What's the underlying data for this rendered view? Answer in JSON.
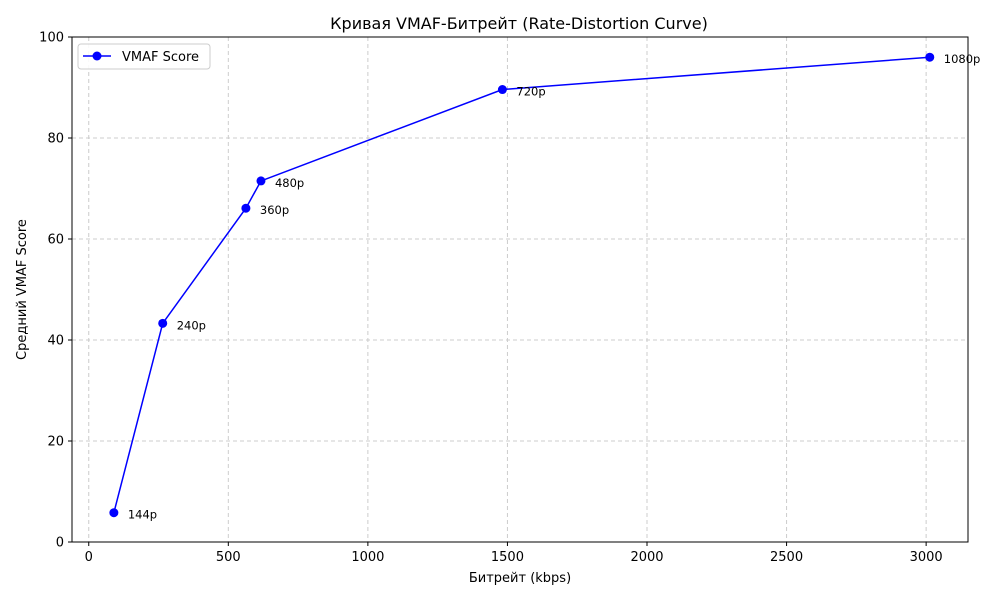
{
  "chart_data": {
    "type": "line",
    "title": "Кривая VMAF-Битрейт (Rate-Distortion Curve)",
    "xlabel": "Битрейт (kbps)",
    "ylabel": "Средний VMAF Score",
    "xlim": [
      -60,
      3150
    ],
    "ylim": [
      0,
      100
    ],
    "xticks": [
      0,
      500,
      1000,
      1500,
      2000,
      2500,
      3000
    ],
    "yticks": [
      0,
      20,
      40,
      60,
      80,
      100
    ],
    "grid": true,
    "legend_position": "top-left",
    "series": [
      {
        "name": "VMAF Score",
        "color": "#0000ff",
        "marker": "circle",
        "x": [
          90,
          265,
          563,
          617,
          1482,
          3013
        ],
        "y": [
          5.8,
          43.3,
          66.1,
          71.5,
          89.6,
          96.0
        ],
        "point_labels": [
          "144p",
          "240p",
          "360p",
          "480p",
          "720p",
          "1080p"
        ]
      }
    ]
  }
}
